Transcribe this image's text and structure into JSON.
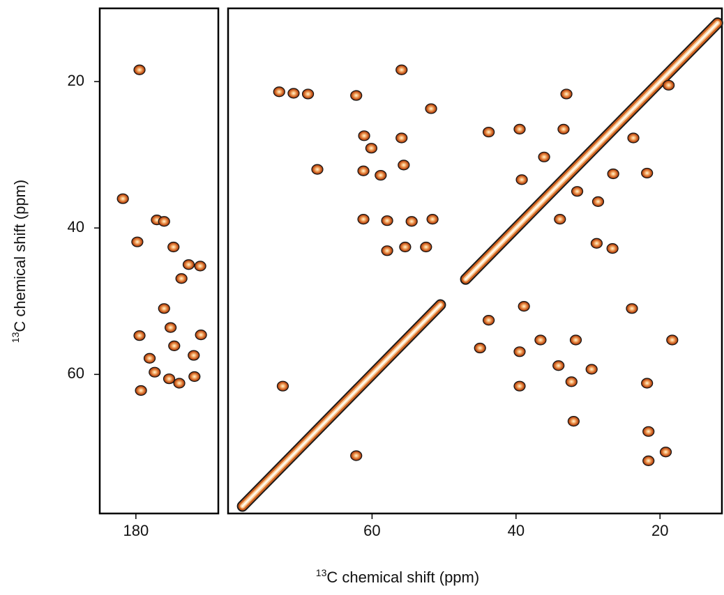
{
  "axis_label": {
    "sup": "13",
    "text": "C chemical shift (ppm)"
  },
  "chart_data": [
    {
      "type": "scatter",
      "xlim": [
        185,
        168.6
      ],
      "ylim": [
        79,
        10
      ],
      "xticks": [
        180
      ],
      "yticks": [
        20,
        40,
        60
      ],
      "series": [
        {
          "color": "#c8561c",
          "x": [
            179.5,
            181.8,
            179.8,
            177.1,
            176.1,
            174.8,
            172.7,
            171.1,
            173.7,
            176.1,
            179.5,
            175.2,
            174.7,
            172.0,
            171.0,
            178.1,
            177.4,
            179.3,
            175.4,
            174.0,
            171.9
          ],
          "values": [
            18.4,
            36.0,
            41.9,
            38.9,
            39.1,
            42.6,
            45.0,
            45.2,
            46.9,
            51.0,
            54.7,
            53.6,
            56.1,
            57.4,
            54.6,
            57.8,
            59.7,
            62.2,
            60.6,
            61.2,
            60.3
          ]
        }
      ]
    },
    {
      "type": "scatter",
      "xlim": [
        80,
        11.4
      ],
      "ylim": [
        79,
        10
      ],
      "xticks": [
        60,
        40,
        20
      ],
      "yticks": [],
      "diagonal": {
        "color": "#d0601e",
        "x": [
          78,
          70,
          60,
          50.5,
          null,
          47,
          40,
          30,
          20,
          12
        ],
        "values": [
          78,
          70,
          60,
          50.5,
          null,
          47,
          40,
          30,
          20,
          12
        ]
      },
      "series": [
        {
          "color": "#c8561c",
          "x": [
            72.9,
            70.9,
            68.9,
            62.2,
            55.9,
            51.8,
            61.1,
            55.9,
            60.1,
            61.2,
            58.8,
            55.6,
            67.6,
            61.2,
            57.9,
            54.5,
            51.6,
            57.9,
            55.4,
            52.5,
            43.8,
            39.5,
            33.0,
            33.4,
            36.1,
            39.2,
            31.5,
            28.6,
            33.9,
            28.8,
            26.6,
            23.7,
            21.8,
            26.5,
            43.8,
            38.9,
            45.0,
            39.5,
            36.6,
            31.7,
            34.1,
            29.5,
            32.3,
            39.5,
            23.9,
            18.3,
            21.8,
            21.6,
            21.6,
            19.2,
            32.0,
            72.4,
            62.2,
            18.8
          ],
          "values": [
            21.4,
            21.6,
            21.7,
            21.9,
            18.4,
            23.7,
            27.4,
            27.7,
            29.1,
            32.2,
            32.8,
            31.4,
            32.0,
            38.8,
            39.0,
            39.1,
            38.8,
            43.1,
            42.6,
            42.6,
            26.9,
            26.5,
            21.7,
            26.5,
            30.3,
            33.4,
            35.0,
            36.4,
            38.8,
            42.1,
            42.8,
            27.7,
            32.5,
            32.6,
            52.6,
            50.7,
            56.4,
            56.9,
            55.3,
            55.3,
            58.8,
            59.3,
            61.0,
            61.6,
            51.0,
            55.3,
            61.2,
            67.8,
            71.8,
            70.6,
            66.4,
            61.6,
            71.1,
            20.5
          ]
        }
      ]
    }
  ]
}
